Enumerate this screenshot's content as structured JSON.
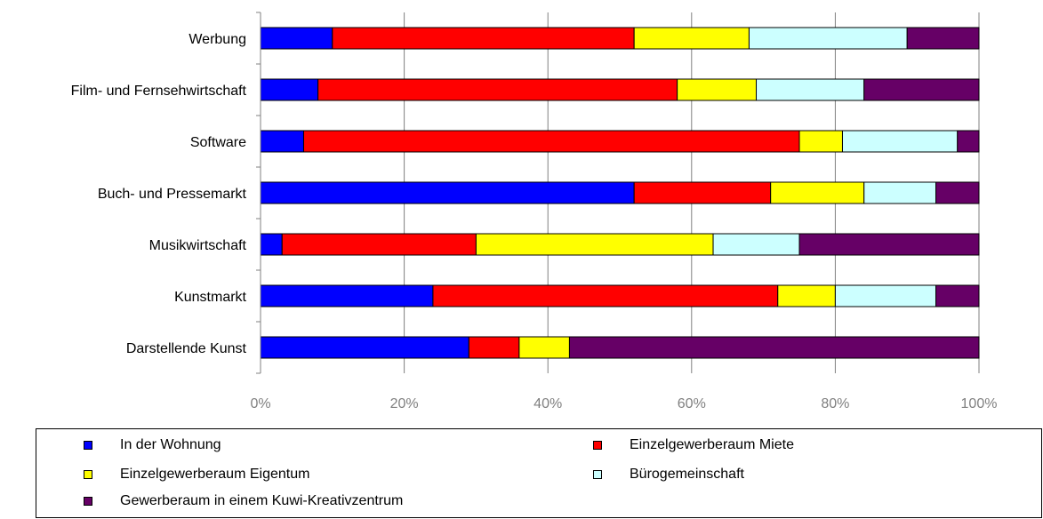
{
  "chart_data": {
    "type": "bar",
    "orientation": "horizontal",
    "stacked": "100%",
    "categories": [
      "Werbung",
      "Film- und Fernsehwirtschaft",
      "Software",
      "Buch- und Pressemarkt",
      "Musikwirtschaft",
      "Kunstmarkt",
      "Darstellende Kunst"
    ],
    "series": [
      {
        "name": "In der Wohnung",
        "color": "#0000FF",
        "values": [
          10,
          8,
          6,
          52,
          3,
          24,
          29
        ]
      },
      {
        "name": "Einzelgewerberaum Miete",
        "color": "#FF0000",
        "values": [
          42,
          50,
          69,
          19,
          27,
          48,
          7
        ]
      },
      {
        "name": "Einzelgewerberaum Eigentum",
        "color": "#FFFF00",
        "values": [
          16,
          11,
          6,
          13,
          33,
          8,
          7
        ]
      },
      {
        "name": "Bürogemeinschaft",
        "color": "#CCFFFF",
        "values": [
          22,
          15,
          16,
          10,
          12,
          14,
          0
        ]
      },
      {
        "name": "Gewerberaum in einem Kuwi-Kreativzentrum",
        "color": "#660066",
        "values": [
          10,
          16,
          3,
          6,
          25,
          6,
          57
        ]
      }
    ],
    "xticks": [
      "0%",
      "20%",
      "40%",
      "60%",
      "80%",
      "100%"
    ],
    "xlim": [
      0,
      100
    ],
    "grid": true,
    "legend_position": "bottom"
  }
}
